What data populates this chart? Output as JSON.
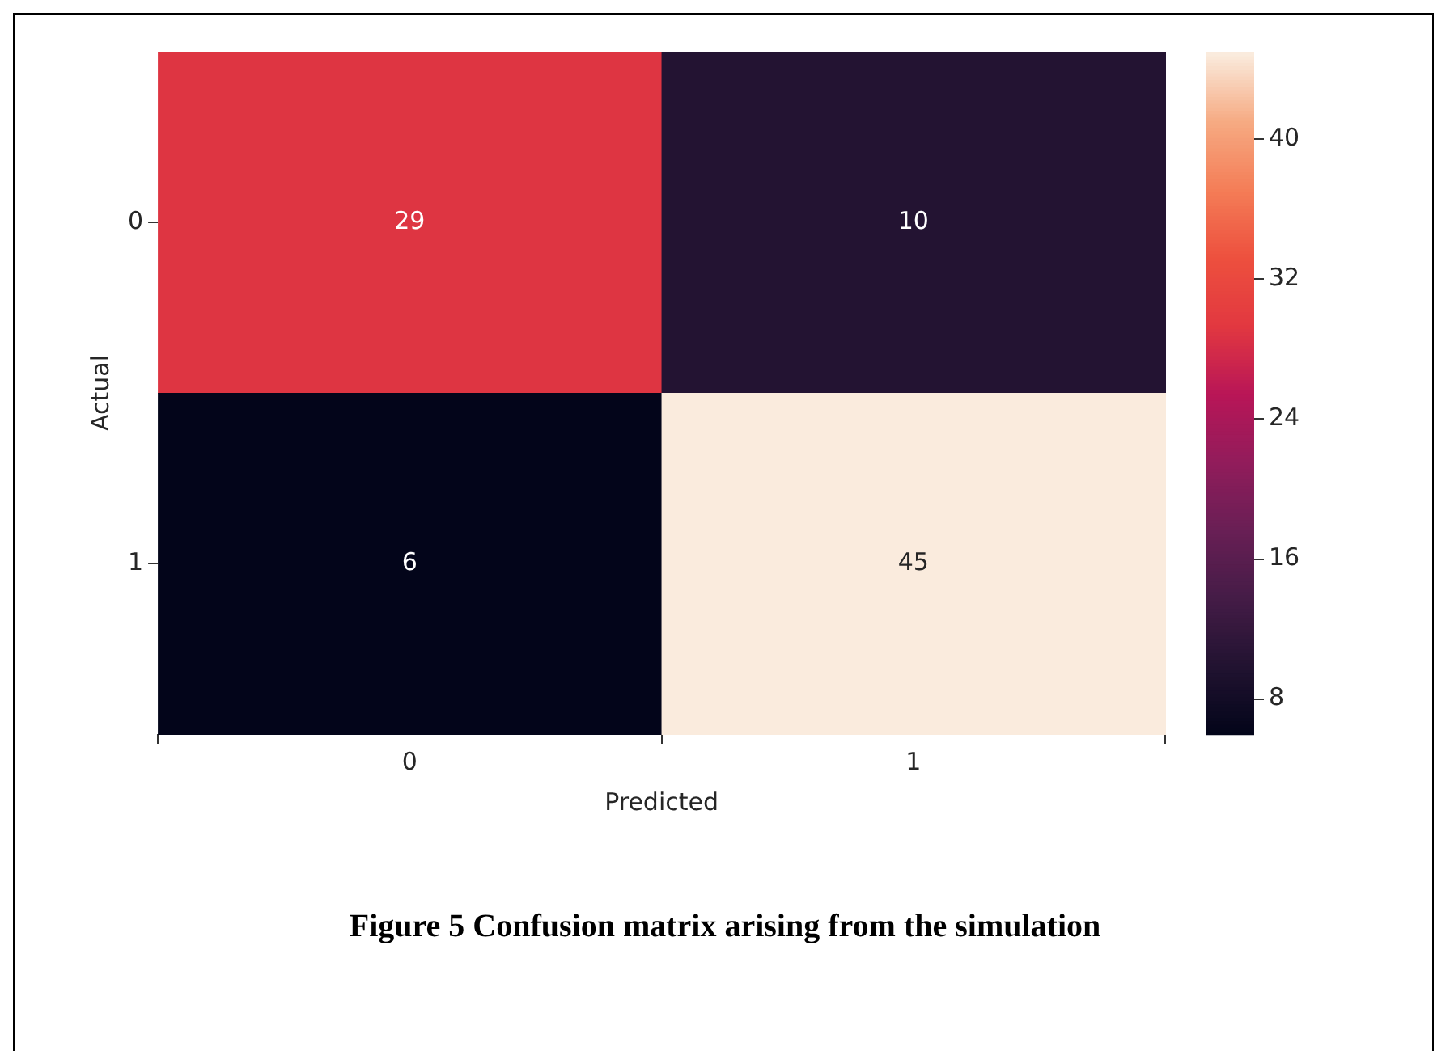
{
  "chart_data": {
    "type": "heatmap",
    "xlabel": "Predicted",
    "ylabel": "Actual",
    "categories": [
      "0",
      "1"
    ],
    "y_categories": [
      "0",
      "1"
    ],
    "cells": [
      [
        29,
        10
      ],
      [
        6,
        45
      ]
    ],
    "data_labels": true,
    "clim": [
      6,
      45
    ],
    "cticks": [
      8,
      16,
      24,
      32,
      40
    ],
    "annotations": [
      "Figure 5 Confusion matrix arising from the simulation"
    ]
  }
}
